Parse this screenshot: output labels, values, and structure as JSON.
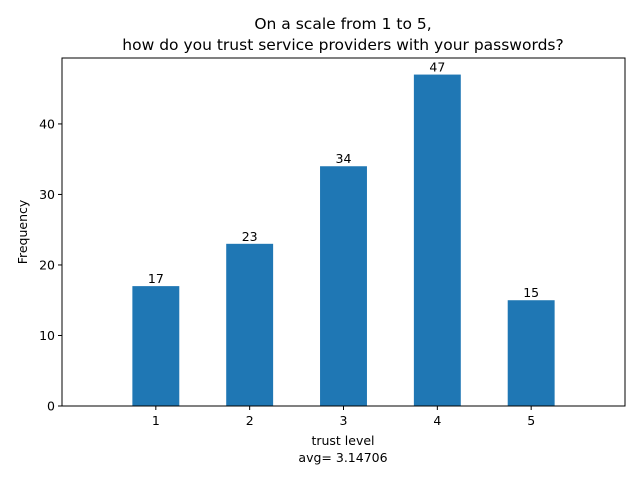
{
  "chart_data": {
    "type": "bar",
    "title_lines": [
      "On a scale from 1 to 5,",
      "how do you trust service providers with your passwords?"
    ],
    "categories": [
      "1",
      "2",
      "3",
      "4",
      "5"
    ],
    "values": [
      17,
      23,
      34,
      47,
      15
    ],
    "data_labels": [
      "17",
      "23",
      "34",
      "47",
      "15"
    ],
    "xlabel_lines": [
      "trust level",
      "avg= 3.14706"
    ],
    "ylabel": "Frequency",
    "ylim": [
      0,
      49.35
    ],
    "xlim": [
      0,
      6
    ],
    "yticks": [
      0,
      10,
      20,
      30,
      40
    ],
    "grid": false,
    "legend": "none",
    "bar_color": "#1f77b4"
  }
}
